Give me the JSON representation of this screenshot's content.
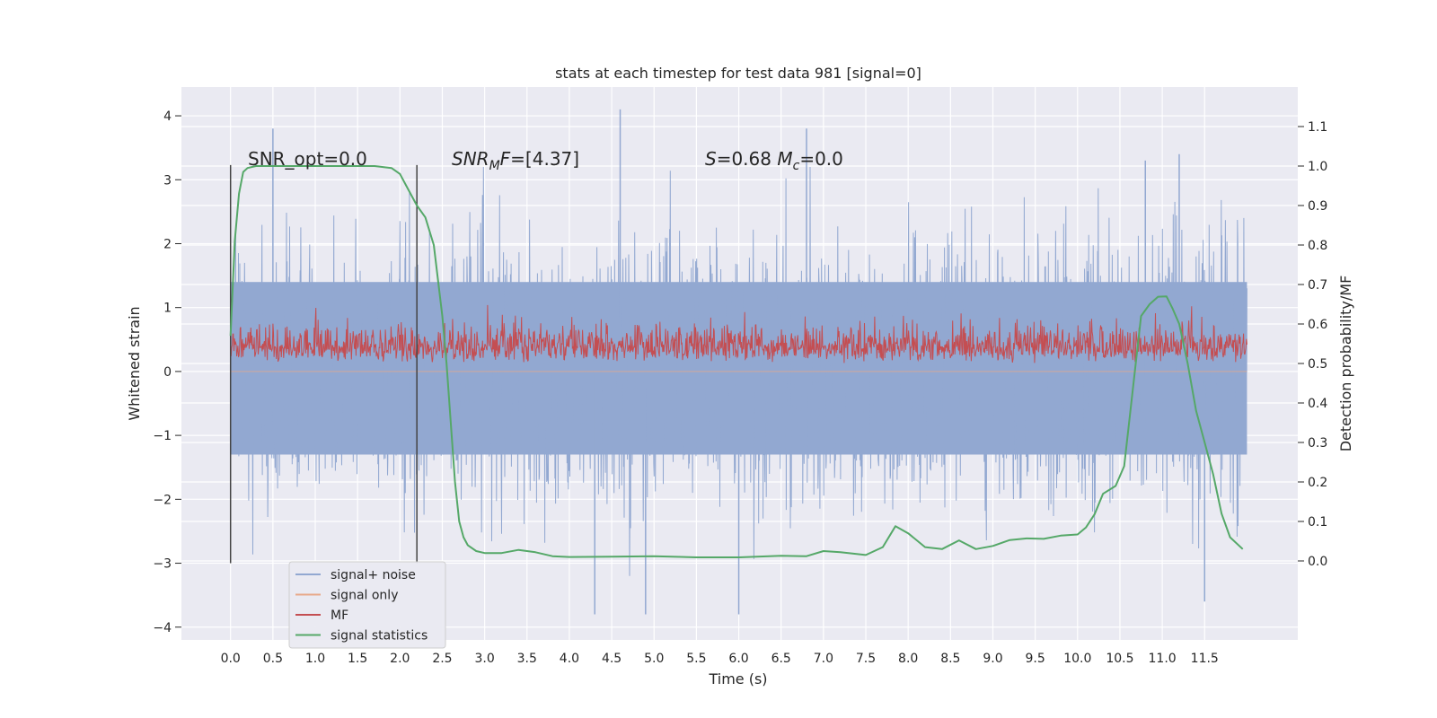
{
  "chart_data": {
    "type": "line",
    "title": "stats at each timestep for test data 981 [signal=0]",
    "xlabel": "Time (s)",
    "ylabel": "Whitened strain",
    "y2label": "Detection probability/MF",
    "xlim": [
      -0.58,
      12.6
    ],
    "ylim": [
      -4.2,
      4.45
    ],
    "y2lim": [
      -0.2,
      1.2
    ],
    "xticks": [
      0.0,
      0.5,
      1.0,
      1.5,
      2.0,
      2.5,
      3.0,
      3.5,
      4.0,
      4.5,
      5.0,
      5.5,
      6.0,
      6.5,
      7.0,
      7.5,
      8.0,
      8.5,
      9.0,
      9.5,
      10.0,
      10.5,
      11.0,
      11.5
    ],
    "xtick_labels": [
      "0.0",
      "0.5",
      "1.0",
      "1.5",
      "2.0",
      "2.5",
      "3.0",
      "3.5",
      "4.0",
      "4.5",
      "5.0",
      "5.5",
      "6.0",
      "6.5",
      "7.0",
      "7.5",
      "8.0",
      "8.5",
      "9.0",
      "9.5",
      "10.0",
      "10.5",
      "11.0",
      "11.5"
    ],
    "yticks": [
      -4,
      -3,
      -2,
      -1,
      0,
      1,
      2,
      3,
      4
    ],
    "ytick_labels": [
      "−4",
      "−3",
      "−2",
      "−1",
      "0",
      "1",
      "2",
      "3",
      "4"
    ],
    "y2ticks": [
      0.0,
      0.1,
      0.2,
      0.3,
      0.4,
      0.5,
      0.6,
      0.7,
      0.8,
      0.9,
      1.0,
      1.1
    ],
    "y2tick_labels": [
      "0.0",
      "0.1",
      "0.2",
      "0.3",
      "0.4",
      "0.5",
      "0.6",
      "0.7",
      "0.8",
      "0.9",
      "1.0",
      "1.1"
    ],
    "grid": true,
    "legend_placement": "lower-left",
    "vlines": [
      0.0,
      2.2
    ],
    "annotations": [
      "SNR_opt=0.0",
      "SNR_MF=[4.37]",
      "S=0.68   M_c=0.0"
    ],
    "series": [
      {
        "name": "signal+ noise",
        "color": "#92a8d1",
        "axis": "left",
        "x_range": [
          0.0,
          12.0
        ],
        "band_core": [
          -1.3,
          1.4
        ],
        "band_envelope": [
          -3.0,
          3.0
        ],
        "spike_peaks": [
          {
            "x": 0.5,
            "y": 3.8
          },
          {
            "x": 4.6,
            "y": 4.1
          },
          {
            "x": 6.8,
            "y": 3.8
          },
          {
            "x": 10.8,
            "y": 3.3
          },
          {
            "x": 11.2,
            "y": 3.4
          },
          {
            "x": 4.3,
            "y": -3.8
          },
          {
            "x": 4.9,
            "y": -3.8
          },
          {
            "x": 6.0,
            "y": -3.8
          },
          {
            "x": 11.5,
            "y": -3.6
          }
        ]
      },
      {
        "name": "signal only",
        "color": "#e8a98a",
        "axis": "left",
        "values": "0 across all times"
      },
      {
        "name": "MF",
        "color": "#c44e52",
        "axis": "right",
        "band": [
          0.5,
          0.6
        ],
        "peak_max": 0.65
      },
      {
        "name": "signal statistics",
        "color": "#55a868",
        "axis": "right",
        "x": [
          0.0,
          0.05,
          0.1,
          0.15,
          0.2,
          0.3,
          0.5,
          1.0,
          1.5,
          1.7,
          1.9,
          2.0,
          2.1,
          2.2,
          2.3,
          2.4,
          2.5,
          2.55,
          2.6,
          2.65,
          2.7,
          2.75,
          2.8,
          2.9,
          3.0,
          3.2,
          3.4,
          3.6,
          3.8,
          4.0,
          4.5,
          5.0,
          5.5,
          6.0,
          6.5,
          6.8,
          7.0,
          7.2,
          7.5,
          7.7,
          7.85,
          8.0,
          8.2,
          8.4,
          8.6,
          8.8,
          9.0,
          9.2,
          9.4,
          9.6,
          9.8,
          10.0,
          10.1,
          10.2,
          10.3,
          10.45,
          10.55,
          10.65,
          10.75,
          10.85,
          10.95,
          11.05,
          11.12,
          11.2,
          11.3,
          11.4,
          11.5,
          11.6,
          11.7,
          11.8,
          11.95
        ],
        "values": [
          0.57,
          0.81,
          0.93,
          0.985,
          0.995,
          1.0,
          1.0,
          1.0,
          1.0,
          1.0,
          0.995,
          0.98,
          0.94,
          0.9,
          0.87,
          0.8,
          0.62,
          0.5,
          0.35,
          0.2,
          0.1,
          0.06,
          0.04,
          0.025,
          0.02,
          0.02,
          0.028,
          0.022,
          0.012,
          0.01,
          0.011,
          0.012,
          0.009,
          0.009,
          0.013,
          0.012,
          0.025,
          0.022,
          0.015,
          0.035,
          0.088,
          0.07,
          0.035,
          0.03,
          0.052,
          0.03,
          0.038,
          0.053,
          0.057,
          0.056,
          0.064,
          0.067,
          0.085,
          0.118,
          0.17,
          0.19,
          0.24,
          0.43,
          0.62,
          0.65,
          0.669,
          0.67,
          0.64,
          0.6,
          0.5,
          0.38,
          0.3,
          0.22,
          0.12,
          0.06,
          0.03
        ]
      }
    ]
  }
}
